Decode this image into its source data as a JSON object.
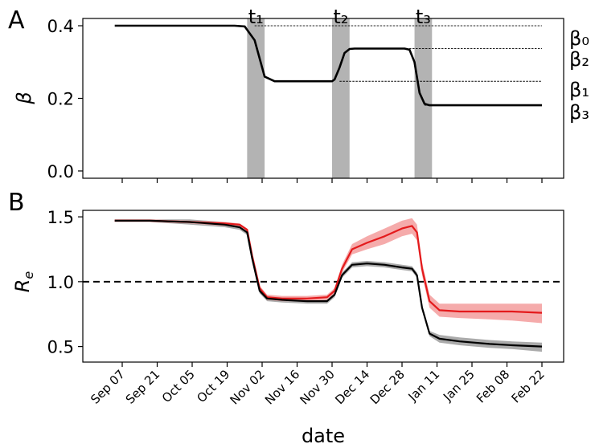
{
  "chart_data": [
    {
      "panel": "A",
      "type": "line",
      "title": "",
      "xlabel": "",
      "ylabel": "β",
      "ylim": [
        -0.02,
        0.42
      ],
      "yticks": [
        "0.0",
        "0.2",
        "0.4"
      ],
      "ytick_values": [
        0.0,
        0.2,
        0.4
      ],
      "grid": false,
      "series": [
        {
          "name": "",
          "color": "#000000",
          "x": [
            "2020-09-04",
            "2020-10-22",
            "2020-10-26",
            "2020-10-30",
            "2020-11-03",
            "2020-11-07",
            "2020-11-30",
            "2020-12-01",
            "2020-12-03",
            "2020-12-05",
            "2020-12-07",
            "2020-12-09",
            "2020-12-29",
            "2020-12-31",
            "2021-01-02",
            "2021-01-04",
            "2021-01-06",
            "2021-01-08",
            "2021-02-22"
          ],
          "values": [
            0.4,
            0.4,
            0.398,
            0.36,
            0.26,
            0.247,
            0.247,
            0.252,
            0.285,
            0.325,
            0.336,
            0.337,
            0.337,
            0.334,
            0.3,
            0.215,
            0.185,
            0.181,
            0.181
          ]
        }
      ],
      "reference_lines": [
        {
          "label": "β₀",
          "value": 0.4,
          "from": "2020-10-30"
        },
        {
          "label": "β₂",
          "value": 0.337,
          "from": "2020-12-09"
        },
        {
          "label": "β₁",
          "value": 0.247,
          "from": "2020-12-03"
        },
        {
          "label": "β₃",
          "value": 0.181,
          "from": "2021-01-06"
        }
      ],
      "change_points": [
        {
          "label": "t₁",
          "from": "2020-10-27",
          "to": "2020-11-03"
        },
        {
          "label": "t₂",
          "from": "2020-11-30",
          "to": "2020-12-07"
        },
        {
          "label": "t₃",
          "from": "2021-01-02",
          "to": "2021-01-09"
        }
      ],
      "band_color": "#b3b3b3"
    },
    {
      "panel": "B",
      "type": "line",
      "title": "",
      "xlabel": "date",
      "ylabel": "R_e",
      "ylim": [
        0.38,
        1.55
      ],
      "yticks": [
        "0.5",
        "1.0",
        "1.5"
      ],
      "ytick_values": [
        0.5,
        1.0,
        1.5
      ],
      "grid": false,
      "hline": {
        "value": 1.0,
        "style": "dashed",
        "color": "#000000"
      },
      "xticks": [
        "Sep 07",
        "Sep 21",
        "Oct 05",
        "Oct 19",
        "Nov 02",
        "Nov 16",
        "Nov 30",
        "Dec 14",
        "Dec 28",
        "Jan 11",
        "Jan 25",
        "Feb 08",
        "Feb 22"
      ],
      "xtick_dates": [
        "2020-09-07",
        "2020-09-21",
        "2020-10-05",
        "2020-10-19",
        "2020-11-02",
        "2020-11-16",
        "2020-11-30",
        "2020-12-14",
        "2020-12-28",
        "2021-01-11",
        "2021-01-25",
        "2021-02-08",
        "2021-02-22"
      ],
      "series": [
        {
          "name": "",
          "color": "#e41a1c",
          "band_color": "#f4a6a6",
          "x": [
            "2020-09-04",
            "2020-09-18",
            "2020-10-04",
            "2020-10-18",
            "2020-10-24",
            "2020-10-27",
            "2020-10-29",
            "2020-11-01",
            "2020-11-04",
            "2020-11-10",
            "2020-11-20",
            "2020-11-28",
            "2020-12-01",
            "2020-12-04",
            "2020-12-08",
            "2020-12-14",
            "2020-12-21",
            "2020-12-28",
            "2021-01-01",
            "2021-01-03",
            "2021-01-05",
            "2021-01-08",
            "2021-01-12",
            "2021-01-20",
            "2021-02-01",
            "2021-02-10",
            "2021-02-22"
          ],
          "values": [
            1.47,
            1.47,
            1.46,
            1.45,
            1.44,
            1.4,
            1.2,
            0.95,
            0.88,
            0.87,
            0.87,
            0.88,
            0.93,
            1.1,
            1.25,
            1.3,
            1.35,
            1.41,
            1.43,
            1.38,
            1.1,
            0.85,
            0.78,
            0.77,
            0.77,
            0.77,
            0.76
          ],
          "lower": [
            1.46,
            1.46,
            1.45,
            1.43,
            1.42,
            1.38,
            1.18,
            0.93,
            0.86,
            0.85,
            0.85,
            0.86,
            0.91,
            1.07,
            1.21,
            1.25,
            1.29,
            1.35,
            1.37,
            1.32,
            1.05,
            0.8,
            0.73,
            0.72,
            0.71,
            0.7,
            0.68
          ],
          "upper": [
            1.48,
            1.48,
            1.47,
            1.46,
            1.45,
            1.41,
            1.22,
            0.97,
            0.9,
            0.89,
            0.89,
            0.9,
            0.95,
            1.13,
            1.29,
            1.35,
            1.41,
            1.47,
            1.49,
            1.44,
            1.15,
            0.9,
            0.83,
            0.83,
            0.83,
            0.83,
            0.83
          ]
        },
        {
          "name": "",
          "color": "#000000",
          "band_color": "#a6a6a6",
          "x": [
            "2020-09-04",
            "2020-09-18",
            "2020-10-04",
            "2020-10-18",
            "2020-10-24",
            "2020-10-27",
            "2020-10-29",
            "2020-11-01",
            "2020-11-04",
            "2020-11-10",
            "2020-11-20",
            "2020-11-28",
            "2020-12-01",
            "2020-12-04",
            "2020-12-08",
            "2020-12-14",
            "2020-12-21",
            "2020-12-28",
            "2021-01-01",
            "2021-01-03",
            "2021-01-05",
            "2021-01-08",
            "2021-01-12",
            "2021-01-20",
            "2021-02-01",
            "2021-02-10",
            "2021-02-22"
          ],
          "values": [
            1.47,
            1.47,
            1.46,
            1.44,
            1.42,
            1.38,
            1.18,
            0.93,
            0.87,
            0.86,
            0.85,
            0.85,
            0.9,
            1.05,
            1.13,
            1.14,
            1.13,
            1.11,
            1.1,
            1.05,
            0.8,
            0.6,
            0.56,
            0.54,
            0.52,
            0.51,
            0.5
          ],
          "lower": [
            1.46,
            1.46,
            1.44,
            1.42,
            1.4,
            1.36,
            1.16,
            0.91,
            0.85,
            0.84,
            0.83,
            0.83,
            0.88,
            1.03,
            1.11,
            1.12,
            1.11,
            1.09,
            1.08,
            1.03,
            0.78,
            0.58,
            0.53,
            0.51,
            0.49,
            0.48,
            0.46
          ],
          "upper": [
            1.48,
            1.48,
            1.48,
            1.46,
            1.44,
            1.4,
            1.2,
            0.95,
            0.89,
            0.88,
            0.87,
            0.87,
            0.92,
            1.07,
            1.15,
            1.16,
            1.15,
            1.13,
            1.12,
            1.07,
            0.82,
            0.62,
            0.59,
            0.57,
            0.55,
            0.54,
            0.53
          ]
        }
      ]
    }
  ]
}
